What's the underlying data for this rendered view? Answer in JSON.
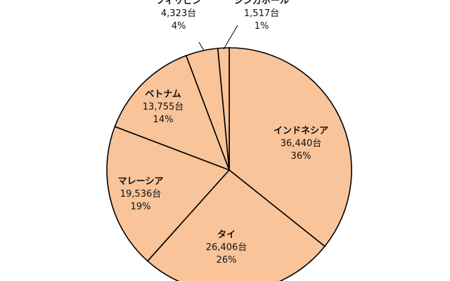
{
  "chart_data": {
    "type": "pie",
    "slices": [
      {
        "name": "インドネシア",
        "count": "36,440台",
        "percent": "36%",
        "value": 36440
      },
      {
        "name": "タイ",
        "count": "26,406台",
        "percent": "26%",
        "value": 26406
      },
      {
        "name": "マレーシア",
        "count": "19,536台",
        "percent": "19%",
        "value": 19536
      },
      {
        "name": "ベトナム",
        "count": "13,755台",
        "percent": "14%",
        "value": 13755
      },
      {
        "name": "フィリピン",
        "count": "4,323台",
        "percent": "4%",
        "value": 4323
      },
      {
        "name": "シンガポール",
        "count": "1,517台",
        "percent": "1%",
        "value": 1517
      }
    ],
    "colors": {
      "fill": "#f9c49a",
      "stroke": "#000000",
      "text": "#111111"
    },
    "start": "12 o'clock",
    "direction": "clockwise"
  }
}
